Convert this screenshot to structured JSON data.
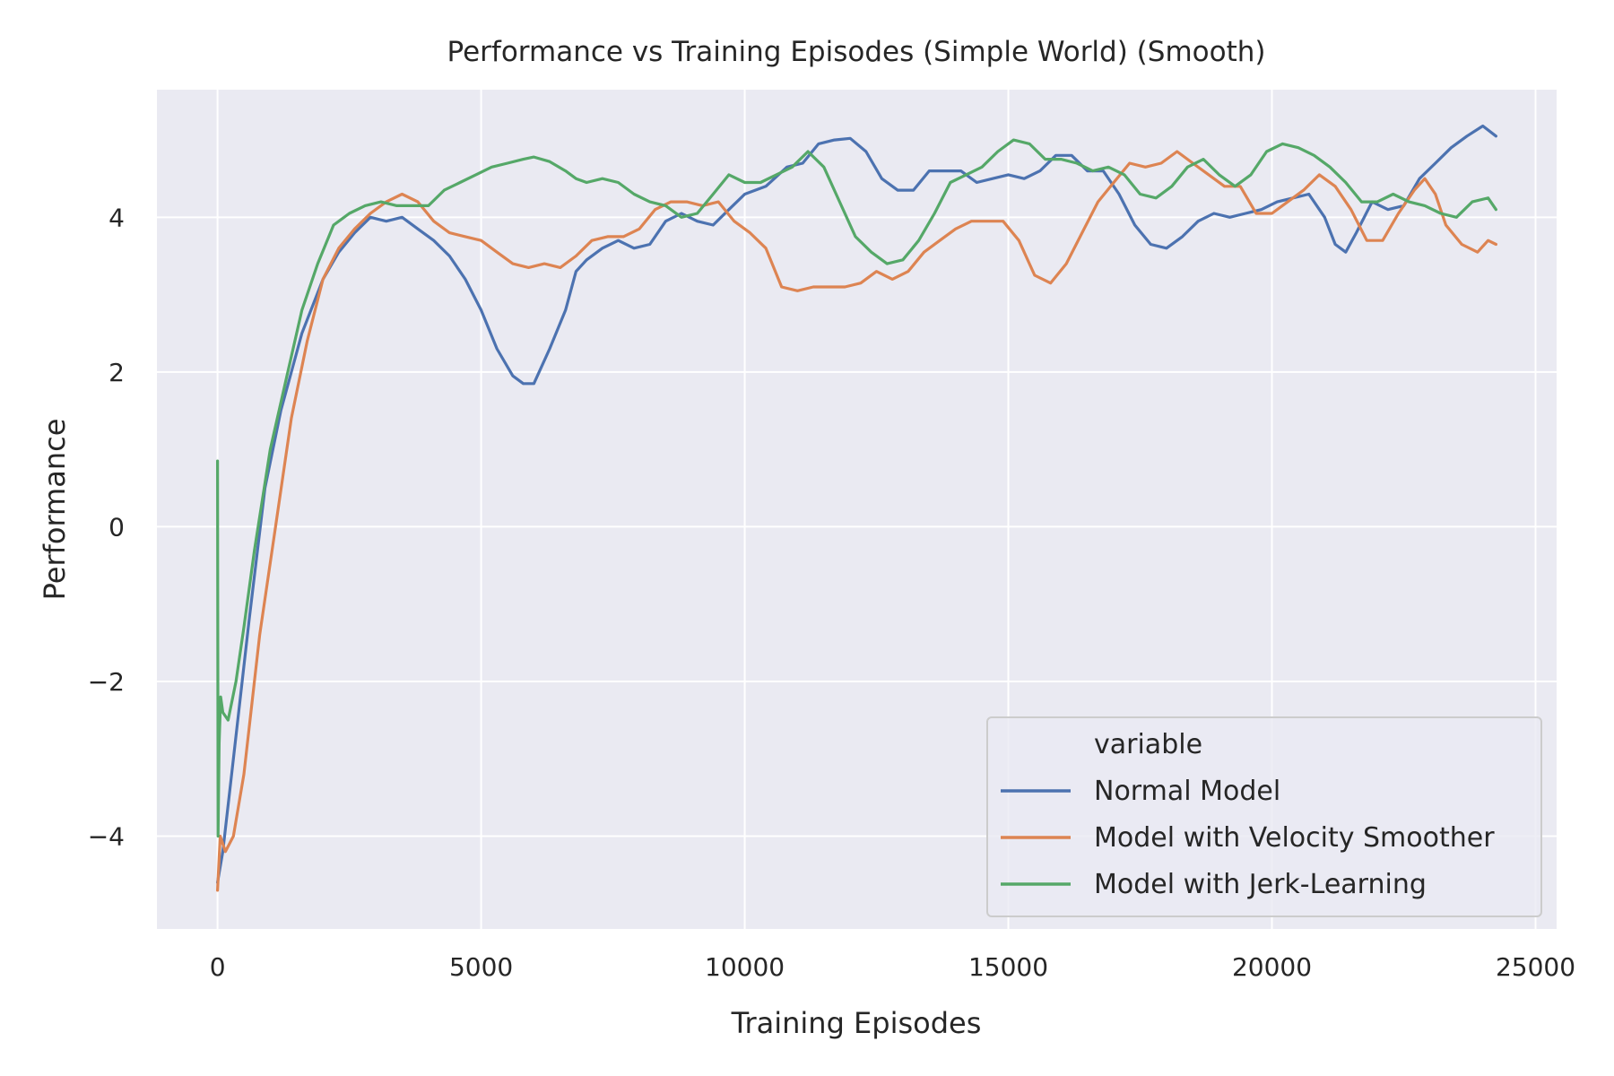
{
  "colors": {
    "plot_background": "#eaeaf2",
    "grid": "#ffffff",
    "text": "#262626",
    "legend_background": "#eaeaf2",
    "legend_border": "#cccccc"
  },
  "chart_data": {
    "type": "line",
    "title": "Performance vs Training Episodes (Simple World) (Smooth)",
    "xlabel": "Training Episodes",
    "ylabel": "Performance",
    "xlim": [
      -1150,
      25400
    ],
    "ylim": [
      -5.2,
      5.65
    ],
    "xticks": [
      0,
      5000,
      10000,
      15000,
      20000,
      25000
    ],
    "xtick_labels": [
      "0",
      "5000",
      "10000",
      "15000",
      "20000",
      "25000"
    ],
    "yticks": [
      -4,
      -2,
      0,
      2,
      4
    ],
    "ytick_labels": [
      "−4",
      "−2",
      "0",
      "2",
      "4"
    ],
    "grid": true,
    "legend": {
      "title": "variable",
      "placement": "lower-right"
    },
    "series": [
      {
        "name": "Normal Model",
        "color": "#4c72b0",
        "x": [
          0,
          100,
          300,
          600,
          900,
          1200,
          1600,
          2000,
          2300,
          2600,
          2900,
          3200,
          3500,
          3800,
          4100,
          4400,
          4700,
          5000,
          5300,
          5600,
          5800,
          6000,
          6300,
          6600,
          6800,
          7000,
          7300,
          7600,
          7900,
          8200,
          8500,
          8800,
          9100,
          9400,
          9700,
          10000,
          10400,
          10800,
          11100,
          11400,
          11700,
          12000,
          12300,
          12600,
          12900,
          13200,
          13500,
          13800,
          14100,
          14400,
          14700,
          15000,
          15300,
          15600,
          15900,
          16200,
          16500,
          16800,
          17100,
          17400,
          17700,
          18000,
          18300,
          18600,
          18900,
          19200,
          19500,
          19800,
          20100,
          20400,
          20700,
          21000,
          21200,
          21400,
          21600,
          21900,
          22200,
          22500,
          22800,
          23100,
          23400,
          23700,
          24000,
          24250
        ],
        "y": [
          -4.6,
          -4.2,
          -3.0,
          -1.2,
          0.5,
          1.5,
          2.5,
          3.2,
          3.55,
          3.8,
          4.0,
          3.95,
          4.0,
          3.85,
          3.7,
          3.5,
          3.2,
          2.8,
          2.3,
          1.95,
          1.85,
          1.85,
          2.3,
          2.8,
          3.3,
          3.45,
          3.6,
          3.7,
          3.6,
          3.65,
          3.95,
          4.05,
          3.95,
          3.9,
          4.1,
          4.3,
          4.4,
          4.65,
          4.7,
          4.95,
          5.0,
          5.02,
          4.85,
          4.5,
          4.35,
          4.35,
          4.6,
          4.6,
          4.6,
          4.45,
          4.5,
          4.55,
          4.5,
          4.6,
          4.8,
          4.8,
          4.6,
          4.6,
          4.3,
          3.9,
          3.65,
          3.6,
          3.75,
          3.95,
          4.05,
          4.0,
          4.05,
          4.1,
          4.2,
          4.25,
          4.3,
          4.0,
          3.65,
          3.55,
          3.8,
          4.2,
          4.1,
          4.15,
          4.5,
          4.7,
          4.9,
          5.05,
          5.18,
          5.05
        ]
      },
      {
        "name": "Model with Velocity Smoother",
        "color": "#dd8452",
        "x": [
          0,
          50,
          150,
          300,
          500,
          800,
          1100,
          1400,
          1700,
          2000,
          2300,
          2600,
          2900,
          3200,
          3500,
          3800,
          4100,
          4400,
          4700,
          5000,
          5300,
          5600,
          5900,
          6200,
          6500,
          6800,
          7100,
          7400,
          7700,
          8000,
          8300,
          8600,
          8900,
          9200,
          9500,
          9800,
          10100,
          10400,
          10700,
          11000,
          11300,
          11600,
          11900,
          12200,
          12500,
          12800,
          13100,
          13400,
          13700,
          14000,
          14300,
          14600,
          14900,
          15200,
          15500,
          15800,
          16100,
          16400,
          16700,
          17000,
          17300,
          17600,
          17900,
          18200,
          18500,
          18800,
          19100,
          19400,
          19700,
          20000,
          20300,
          20600,
          20900,
          21200,
          21500,
          21800,
          22100,
          22400,
          22700,
          22900,
          23100,
          23300,
          23600,
          23900,
          24100,
          24250
        ],
        "y": [
          -4.7,
          -4.0,
          -4.2,
          -4.0,
          -3.2,
          -1.4,
          0.0,
          1.4,
          2.4,
          3.2,
          3.6,
          3.85,
          4.05,
          4.2,
          4.3,
          4.2,
          3.95,
          3.8,
          3.75,
          3.7,
          3.55,
          3.4,
          3.35,
          3.4,
          3.35,
          3.5,
          3.7,
          3.75,
          3.75,
          3.85,
          4.1,
          4.2,
          4.2,
          4.15,
          4.2,
          3.95,
          3.8,
          3.6,
          3.1,
          3.05,
          3.1,
          3.1,
          3.1,
          3.15,
          3.3,
          3.2,
          3.3,
          3.55,
          3.7,
          3.85,
          3.95,
          3.95,
          3.95,
          3.7,
          3.25,
          3.15,
          3.4,
          3.8,
          4.2,
          4.45,
          4.7,
          4.65,
          4.7,
          4.85,
          4.7,
          4.55,
          4.4,
          4.4,
          4.05,
          4.05,
          4.2,
          4.35,
          4.55,
          4.4,
          4.1,
          3.7,
          3.7,
          4.05,
          4.35,
          4.5,
          4.3,
          3.9,
          3.65,
          3.55,
          3.7,
          3.65
        ]
      },
      {
        "name": "Model with Jerk-Learning",
        "color": "#55a868",
        "x": [
          0,
          10,
          30,
          60,
          100,
          200,
          350,
          500,
          700,
          1000,
          1300,
          1600,
          1900,
          2200,
          2500,
          2800,
          3100,
          3400,
          3700,
          4000,
          4300,
          4600,
          4900,
          5200,
          5500,
          5800,
          6000,
          6300,
          6600,
          6800,
          7000,
          7300,
          7600,
          7900,
          8200,
          8500,
          8800,
          9100,
          9400,
          9700,
          10000,
          10300,
          10600,
          10900,
          11200,
          11500,
          11800,
          12100,
          12400,
          12700,
          13000,
          13300,
          13600,
          13900,
          14200,
          14500,
          14800,
          15100,
          15400,
          15700,
          16000,
          16300,
          16600,
          16900,
          17200,
          17500,
          17800,
          18100,
          18400,
          18700,
          19000,
          19300,
          19600,
          19900,
          20200,
          20500,
          20800,
          21100,
          21400,
          21700,
          22000,
          22300,
          22600,
          22900,
          23200,
          23500,
          23800,
          24100,
          24250
        ],
        "y": [
          0.85,
          -4.0,
          -2.8,
          -2.2,
          -2.4,
          -2.5,
          -2.0,
          -1.3,
          -0.3,
          1.0,
          1.9,
          2.8,
          3.4,
          3.9,
          4.05,
          4.15,
          4.2,
          4.15,
          4.15,
          4.15,
          4.35,
          4.45,
          4.55,
          4.65,
          4.7,
          4.75,
          4.78,
          4.72,
          4.6,
          4.5,
          4.45,
          4.5,
          4.45,
          4.3,
          4.2,
          4.15,
          4.0,
          4.05,
          4.3,
          4.55,
          4.45,
          4.45,
          4.55,
          4.65,
          4.85,
          4.65,
          4.2,
          3.75,
          3.55,
          3.4,
          3.45,
          3.7,
          4.05,
          4.45,
          4.55,
          4.65,
          4.85,
          5.0,
          4.95,
          4.75,
          4.75,
          4.7,
          4.6,
          4.65,
          4.55,
          4.3,
          4.25,
          4.4,
          4.65,
          4.75,
          4.55,
          4.4,
          4.55,
          4.85,
          4.95,
          4.9,
          4.8,
          4.65,
          4.45,
          4.2,
          4.2,
          4.3,
          4.2,
          4.15,
          4.05,
          4.0,
          4.2,
          4.25,
          4.1
        ]
      }
    ]
  }
}
